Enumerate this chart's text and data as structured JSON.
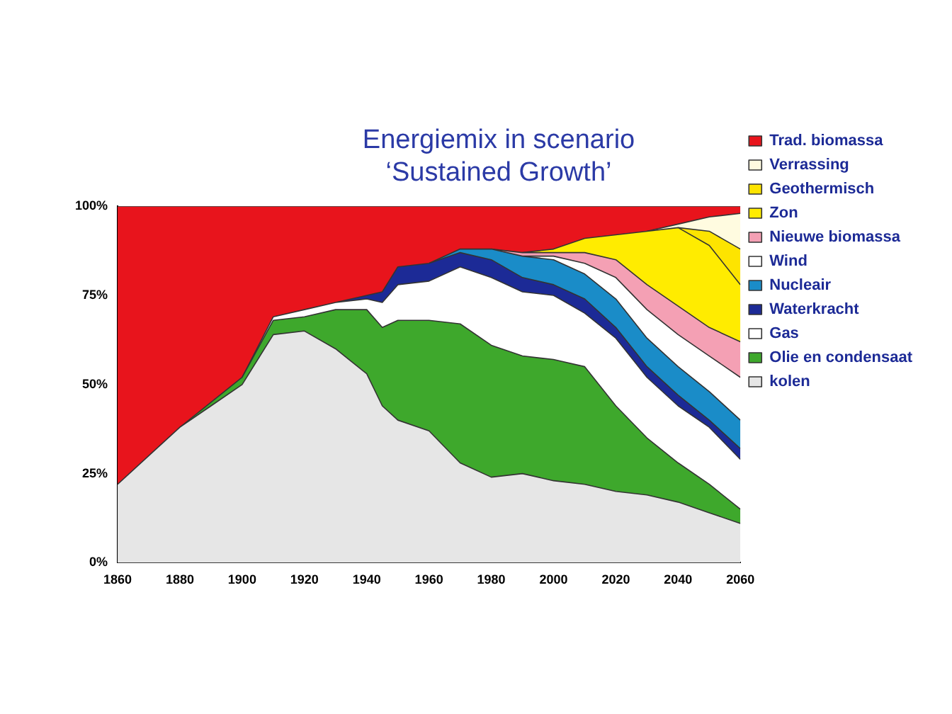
{
  "chart_data": {
    "type": "area",
    "title": "Energiemix in scenario\n‘Sustained Growth’",
    "stacked": true,
    "x": [
      1860,
      1870,
      1880,
      1890,
      1900,
      1910,
      1920,
      1930,
      1940,
      1945,
      1950,
      1960,
      1970,
      1980,
      1990,
      2000,
      2010,
      2020,
      2030,
      2040,
      2050,
      2060
    ],
    "series": [
      {
        "name": "kolen",
        "color": "#e6e6e6",
        "values": [
          22,
          30,
          38,
          44,
          50,
          64,
          65,
          60,
          53,
          44,
          40,
          37,
          28,
          24,
          25,
          23,
          22,
          20,
          19,
          17,
          14,
          11
        ]
      },
      {
        "name": "Olie en condensaat",
        "color": "#3ea82c",
        "values": [
          null,
          null,
          0,
          1,
          2,
          4,
          4,
          11,
          18,
          22,
          28,
          31,
          39,
          37,
          33,
          34,
          33,
          24,
          16,
          11,
          8,
          4
        ]
      },
      {
        "name": "Gas",
        "color": "#ffffff",
        "values": [
          null,
          null,
          null,
          null,
          0,
          1,
          2,
          2,
          3,
          7,
          10,
          11,
          16,
          19,
          18,
          18,
          15,
          19,
          17,
          16,
          16,
          14
        ]
      },
      {
        "name": "Waterkracht",
        "color": "#1c2a96",
        "values": [
          null,
          null,
          null,
          null,
          null,
          null,
          null,
          0,
          1,
          3,
          5,
          5,
          4,
          5,
          4,
          3,
          4,
          3,
          3,
          3,
          2,
          3
        ]
      },
      {
        "name": "Nucleair",
        "color": "#1a8cc8",
        "values": [
          null,
          null,
          null,
          null,
          null,
          null,
          null,
          null,
          null,
          null,
          null,
          0,
          1,
          3,
          6,
          7,
          7,
          8,
          8,
          8,
          8,
          8
        ]
      },
      {
        "name": "Wind",
        "color": "#ffffff",
        "values": [
          null,
          null,
          null,
          null,
          null,
          null,
          null,
          null,
          null,
          null,
          null,
          null,
          null,
          null,
          0,
          1,
          3,
          6,
          8,
          9,
          10,
          12
        ]
      },
      {
        "name": "Nieuwe biomassa",
        "color": "#f4a0b4",
        "values": [
          null,
          null,
          null,
          null,
          null,
          null,
          null,
          null,
          null,
          null,
          null,
          null,
          null,
          0,
          1,
          1,
          3,
          5,
          7,
          8,
          8,
          10
        ]
      },
      {
        "name": "Zon",
        "color": "#ffec00",
        "values": [
          null,
          null,
          null,
          null,
          null,
          null,
          null,
          null,
          null,
          null,
          null,
          null,
          null,
          null,
          0,
          1,
          4,
          7,
          15,
          22,
          23,
          16
        ]
      },
      {
        "name": "Geothermisch",
        "color": "#fde400",
        "values": [
          null,
          null,
          null,
          null,
          null,
          null,
          null,
          null,
          null,
          null,
          null,
          null,
          null,
          null,
          null,
          null,
          null,
          null,
          null,
          0,
          4,
          10
        ]
      },
      {
        "name": "Verrassing",
        "color": "#fffbe0",
        "values": [
          null,
          null,
          null,
          null,
          null,
          null,
          null,
          null,
          null,
          null,
          null,
          null,
          null,
          null,
          null,
          null,
          null,
          null,
          0,
          1,
          4,
          10
        ]
      },
      {
        "name": "Trad. biomassa",
        "color": "#e8141c",
        "values": [
          78,
          70,
          62,
          55,
          48,
          31,
          29,
          27,
          25,
          24,
          17,
          16,
          12,
          12,
          13,
          12,
          9,
          8,
          7,
          5,
          3,
          2
        ]
      }
    ],
    "xlim": [
      1860,
      2060
    ],
    "xticks": [
      1860,
      1880,
      1900,
      1920,
      1940,
      1960,
      1980,
      2000,
      2020,
      2040,
      2060
    ],
    "ylim": [
      0,
      100
    ],
    "yticks": [
      {
        "value": 0,
        "label": "0%"
      },
      {
        "value": 25,
        "label": "25%"
      },
      {
        "value": 50,
        "label": "50%"
      },
      {
        "value": 75,
        "label": "75%"
      },
      {
        "value": 100,
        "label": "100%"
      }
    ],
    "legend": "right",
    "grid": false
  }
}
